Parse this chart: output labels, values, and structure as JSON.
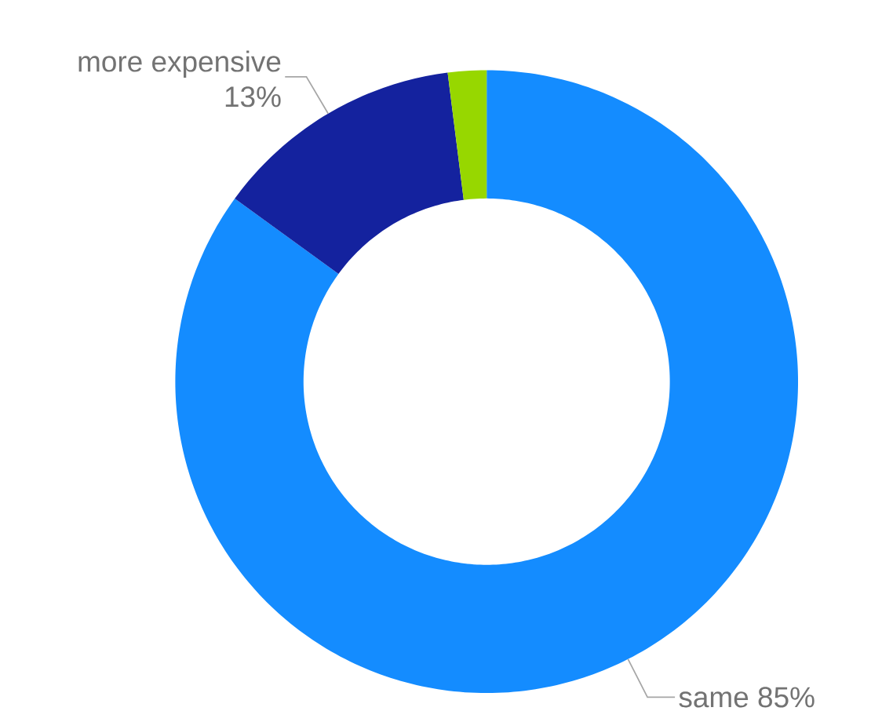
{
  "chart_data": {
    "type": "donut",
    "categories": [
      "same",
      "more expensive",
      null
    ],
    "values": [
      85,
      13,
      2
    ],
    "value_labels": [
      "85%",
      "13%",
      null
    ],
    "colors": [
      "#148cff",
      "#14229e",
      "#97d700"
    ]
  }
}
